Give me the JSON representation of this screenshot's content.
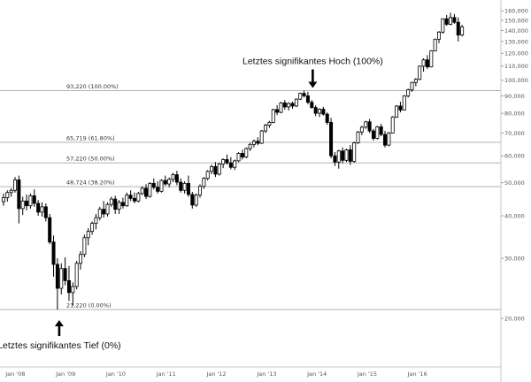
{
  "chart_data": {
    "type": "candlestick",
    "y_scale": "log",
    "ylim": [
      18500,
      168000
    ],
    "xlim": [
      "2007-10-01",
      "2017-03-15"
    ],
    "x_ticks": [
      {
        "label": "Jan '08",
        "date": "2008-01-01"
      },
      {
        "label": "Jan '09",
        "date": "2009-01-01"
      },
      {
        "label": "Jan '10",
        "date": "2010-01-01"
      },
      {
        "label": "Jan '11",
        "date": "2011-01-01"
      },
      {
        "label": "Jan '12",
        "date": "2012-01-01"
      },
      {
        "label": "Jan '13",
        "date": "2013-01-01"
      },
      {
        "label": "Jan '14",
        "date": "2014-01-01"
      },
      {
        "label": "Jan '15",
        "date": "2015-01-01"
      },
      {
        "label": "Jan '16",
        "date": "2016-01-01"
      }
    ],
    "y_ticks": [
      {
        "label": "20,000",
        "value": 20000
      },
      {
        "label": "30,000",
        "value": 30000
      },
      {
        "label": "40,000",
        "value": 40000
      },
      {
        "label": "50,000",
        "value": 50000
      },
      {
        "label": "60,000",
        "value": 60000
      },
      {
        "label": "70,000",
        "value": 70000
      },
      {
        "label": "80,000",
        "value": 80000
      },
      {
        "label": "90,000",
        "value": 90000
      },
      {
        "label": "100,000",
        "value": 100000
      },
      {
        "label": "110,000",
        "value": 110000
      },
      {
        "label": "120,000",
        "value": 120000
      },
      {
        "label": "130,000",
        "value": 130000
      },
      {
        "label": "140,000",
        "value": 140000
      },
      {
        "label": "150,000",
        "value": 150000
      },
      {
        "label": "160,000",
        "value": 160000
      }
    ],
    "fib_levels": [
      {
        "value": 93220,
        "label": "93,220 (100.00%)"
      },
      {
        "value": 65719,
        "label": "65,719 (61.80%)"
      },
      {
        "value": 57220,
        "label": "57,220 (50.00%)"
      },
      {
        "value": 48724,
        "label": "48,724 (38.20%)"
      },
      {
        "value": 21220,
        "label": "21,220 (0.00%)"
      }
    ],
    "annotations": [
      {
        "text": "Letztes signifikantes Hoch (100%)",
        "date": "2013-12-01",
        "value": 93220,
        "position": "above"
      },
      {
        "text": "Letztes signifikantes Tief (0%)",
        "date": "2008-11-15",
        "value": 21220,
        "position": "below"
      }
    ],
    "candles": [
      [
        "2007-10-07",
        44000,
        46500,
        42800,
        45200
      ],
      [
        "2007-11-04",
        45200,
        47500,
        44000,
        46800
      ],
      [
        "2007-12-02",
        46800,
        48200,
        45500,
        47500
      ],
      [
        "2007-12-30",
        47500,
        52000,
        46800,
        51000
      ],
      [
        "2008-01-27",
        51000,
        52500,
        38000,
        42000
      ],
      [
        "2008-02-24",
        42000,
        45500,
        40200,
        44200
      ],
      [
        "2008-03-23",
        44200,
        46200,
        41500,
        42800
      ],
      [
        "2008-04-20",
        42800,
        46500,
        42000,
        45800
      ],
      [
        "2008-05-18",
        45800,
        47800,
        42500,
        43500
      ],
      [
        "2008-06-15",
        43500,
        44500,
        40000,
        41000
      ],
      [
        "2008-07-13",
        41000,
        43800,
        39800,
        42500
      ],
      [
        "2008-08-10",
        42500,
        43500,
        38500,
        39500
      ],
      [
        "2008-09-07",
        39500,
        40500,
        33000,
        33500
      ],
      [
        "2008-10-05",
        33500,
        35000,
        26500,
        28800
      ],
      [
        "2008-11-02",
        28800,
        30000,
        21220,
        24500
      ],
      [
        "2008-11-30",
        24500,
        29000,
        23500,
        28000
      ],
      [
        "2008-12-28",
        28000,
        30200,
        25000,
        25800
      ],
      [
        "2009-01-25",
        25800,
        28500,
        22500,
        23800
      ],
      [
        "2009-02-22",
        23800,
        25500,
        21800,
        24800
      ],
      [
        "2009-03-22",
        24800,
        29500,
        24300,
        29000
      ],
      [
        "2009-04-19",
        29000,
        31500,
        27800,
        30800
      ],
      [
        "2009-05-17",
        30800,
        35200,
        30200,
        34500
      ],
      [
        "2009-06-14",
        34500,
        36800,
        32800,
        36000
      ],
      [
        "2009-07-12",
        36000,
        38500,
        35200,
        38000
      ],
      [
        "2009-08-09",
        38000,
        40500,
        36500,
        39500
      ],
      [
        "2009-09-06",
        39500,
        42500,
        38800,
        41800
      ],
      [
        "2009-10-04",
        41800,
        44200,
        39500,
        40500
      ],
      [
        "2009-11-01",
        40500,
        43800,
        39800,
        43200
      ],
      [
        "2009-11-29",
        43200,
        45500,
        42500,
        44800
      ],
      [
        "2009-12-27",
        44800,
        45800,
        40500,
        41800
      ],
      [
        "2010-01-24",
        41800,
        44500,
        40500,
        43800
      ],
      [
        "2010-02-21",
        43800,
        45200,
        42000,
        42800
      ],
      [
        "2010-03-21",
        42800,
        46800,
        42500,
        46000
      ],
      [
        "2010-04-18",
        46000,
        47500,
        44200,
        45000
      ],
      [
        "2010-05-16",
        45000,
        46800,
        43500,
        44200
      ],
      [
        "2010-06-13",
        44200,
        47000,
        43800,
        46500
      ],
      [
        "2010-07-11",
        46500,
        48800,
        46000,
        48200
      ],
      [
        "2010-08-08",
        48200,
        49500,
        44800,
        45600
      ],
      [
        "2010-09-05",
        45600,
        50200,
        45200,
        49800
      ],
      [
        "2010-10-03",
        49800,
        51500,
        47800,
        48500
      ],
      [
        "2010-10-31",
        48500,
        50500,
        46500,
        47200
      ],
      [
        "2010-11-28",
        47200,
        51200,
        46800,
        50800
      ],
      [
        "2010-12-26",
        50800,
        52500,
        49000,
        49600
      ],
      [
        "2011-01-23",
        49600,
        51800,
        48500,
        51200
      ],
      [
        "2011-02-20",
        51200,
        53500,
        50200,
        52800
      ],
      [
        "2011-03-20",
        52800,
        54200,
        49200,
        50200
      ],
      [
        "2011-04-17",
        50200,
        51500,
        46800,
        47500
      ],
      [
        "2011-05-15",
        47500,
        50500,
        46500,
        49800
      ],
      [
        "2011-06-12",
        49800,
        52500,
        45500,
        46200
      ],
      [
        "2011-07-10",
        46200,
        47000,
        42000,
        43000
      ],
      [
        "2011-08-07",
        43000,
        46500,
        42500,
        46000
      ],
      [
        "2011-09-04",
        46000,
        49500,
        45200,
        48800
      ],
      [
        "2011-10-02",
        48800,
        52000,
        48000,
        51500
      ],
      [
        "2011-10-30",
        51500,
        54500,
        50800,
        54000
      ],
      [
        "2011-11-27",
        54000,
        56500,
        53000,
        55800
      ],
      [
        "2011-12-25",
        55800,
        57500,
        52000,
        53000
      ],
      [
        "2012-01-22",
        53000,
        57200,
        52500,
        56800
      ],
      [
        "2012-02-19",
        56800,
        59000,
        55200,
        58500
      ],
      [
        "2012-03-18",
        58500,
        60500,
        56500,
        57200
      ],
      [
        "2012-04-15",
        57200,
        59500,
        54800,
        55500
      ],
      [
        "2012-05-13",
        55500,
        58500,
        54500,
        58000
      ],
      [
        "2012-06-10",
        58000,
        61500,
        57500,
        61000
      ],
      [
        "2012-07-08",
        61000,
        62500,
        58500,
        59500
      ],
      [
        "2012-08-05",
        59500,
        63500,
        59000,
        63000
      ],
      [
        "2012-09-02",
        63000,
        65500,
        62000,
        64800
      ],
      [
        "2012-09-30",
        64800,
        67000,
        63500,
        66200
      ],
      [
        "2012-10-28",
        66200,
        68000,
        64500,
        65300
      ],
      [
        "2012-11-25",
        65300,
        71500,
        65000,
        71000
      ],
      [
        "2012-12-23",
        71000,
        74500,
        70000,
        73800
      ],
      [
        "2013-01-20",
        73800,
        76000,
        72500,
        75200
      ],
      [
        "2013-02-17",
        75200,
        82500,
        74800,
        82000
      ],
      [
        "2013-03-17",
        82000,
        84500,
        79000,
        80500
      ],
      [
        "2013-04-14",
        80500,
        86500,
        80000,
        85800
      ],
      [
        "2013-05-12",
        85800,
        87500,
        82000,
        83500
      ],
      [
        "2013-06-09",
        83500,
        86200,
        81500,
        85500
      ],
      [
        "2013-07-07",
        85500,
        86500,
        82500,
        84000
      ],
      [
        "2013-08-04",
        84000,
        88500,
        83500,
        88000
      ],
      [
        "2013-09-01",
        88000,
        92000,
        87500,
        91500
      ],
      [
        "2013-09-29",
        91500,
        93220,
        89000,
        90000
      ],
      [
        "2013-10-27",
        90000,
        92500,
        85000,
        86200
      ],
      [
        "2013-11-24",
        86200,
        87500,
        82500,
        83200
      ],
      [
        "2013-12-22",
        83200,
        84500,
        78500,
        80000
      ],
      [
        "2014-01-19",
        80000,
        82800,
        78000,
        82200
      ],
      [
        "2014-02-16",
        82200,
        83500,
        78800,
        79500
      ],
      [
        "2014-03-16",
        79500,
        80500,
        74000,
        75200
      ],
      [
        "2014-04-13",
        75200,
        77500,
        59000,
        60000
      ],
      [
        "2014-05-11",
        60000,
        61500,
        56000,
        57500
      ],
      [
        "2014-06-08",
        57500,
        62500,
        55000,
        62000
      ],
      [
        "2014-07-06",
        62000,
        63500,
        57000,
        58200
      ],
      [
        "2014-08-03",
        58200,
        63000,
        57500,
        62500
      ],
      [
        "2014-08-31",
        62500,
        64500,
        56500,
        57800
      ],
      [
        "2014-09-28",
        57800,
        66000,
        57200,
        65500
      ],
      [
        "2014-10-26",
        65500,
        71000,
        65000,
        70500
      ],
      [
        "2014-11-23",
        70500,
        73500,
        69000,
        72800
      ],
      [
        "2014-12-21",
        72800,
        76000,
        72000,
        75500
      ],
      [
        "2015-01-18",
        75500,
        77000,
        70000,
        71000
      ],
      [
        "2015-02-15",
        71000,
        72000,
        66500,
        67500
      ],
      [
        "2015-03-15",
        67500,
        73500,
        67000,
        73000
      ],
      [
        "2015-04-12",
        73000,
        74500,
        68500,
        69300
      ],
      [
        "2015-05-10",
        69300,
        71000,
        63500,
        64500
      ],
      [
        "2015-06-07",
        64500,
        70500,
        64000,
        70000
      ],
      [
        "2015-07-05",
        70000,
        78500,
        69800,
        78000
      ],
      [
        "2015-08-02",
        78000,
        84500,
        77500,
        84000
      ],
      [
        "2015-08-30",
        84000,
        86500,
        80500,
        81800
      ],
      [
        "2015-09-27",
        81800,
        90500,
        81500,
        90000
      ],
      [
        "2015-10-25",
        90000,
        94500,
        89000,
        93800
      ],
      [
        "2015-11-22",
        93800,
        99000,
        92500,
        98500
      ],
      [
        "2015-12-20",
        98500,
        101500,
        96000,
        100600
      ],
      [
        "2016-01-17",
        100600,
        110500,
        100000,
        110000
      ],
      [
        "2016-02-14",
        110000,
        116000,
        106000,
        114800
      ],
      [
        "2016-03-13",
        114800,
        118500,
        108000,
        109500
      ],
      [
        "2016-04-10",
        109500,
        122500,
        109000,
        122000
      ],
      [
        "2016-05-08",
        122000,
        132500,
        121500,
        132000
      ],
      [
        "2016-06-05",
        132000,
        139500,
        128500,
        138500
      ],
      [
        "2016-07-03",
        138500,
        152000,
        137000,
        151500
      ],
      [
        "2016-07-31",
        151500,
        155500,
        144500,
        146000
      ],
      [
        "2016-08-28",
        146000,
        158000,
        145000,
        152800
      ],
      [
        "2016-09-25",
        152800,
        156500,
        146500,
        148000
      ],
      [
        "2016-10-23",
        148000,
        153000,
        130000,
        135800
      ],
      [
        "2016-11-20",
        135800,
        145500,
        134500,
        143500
      ]
    ]
  }
}
